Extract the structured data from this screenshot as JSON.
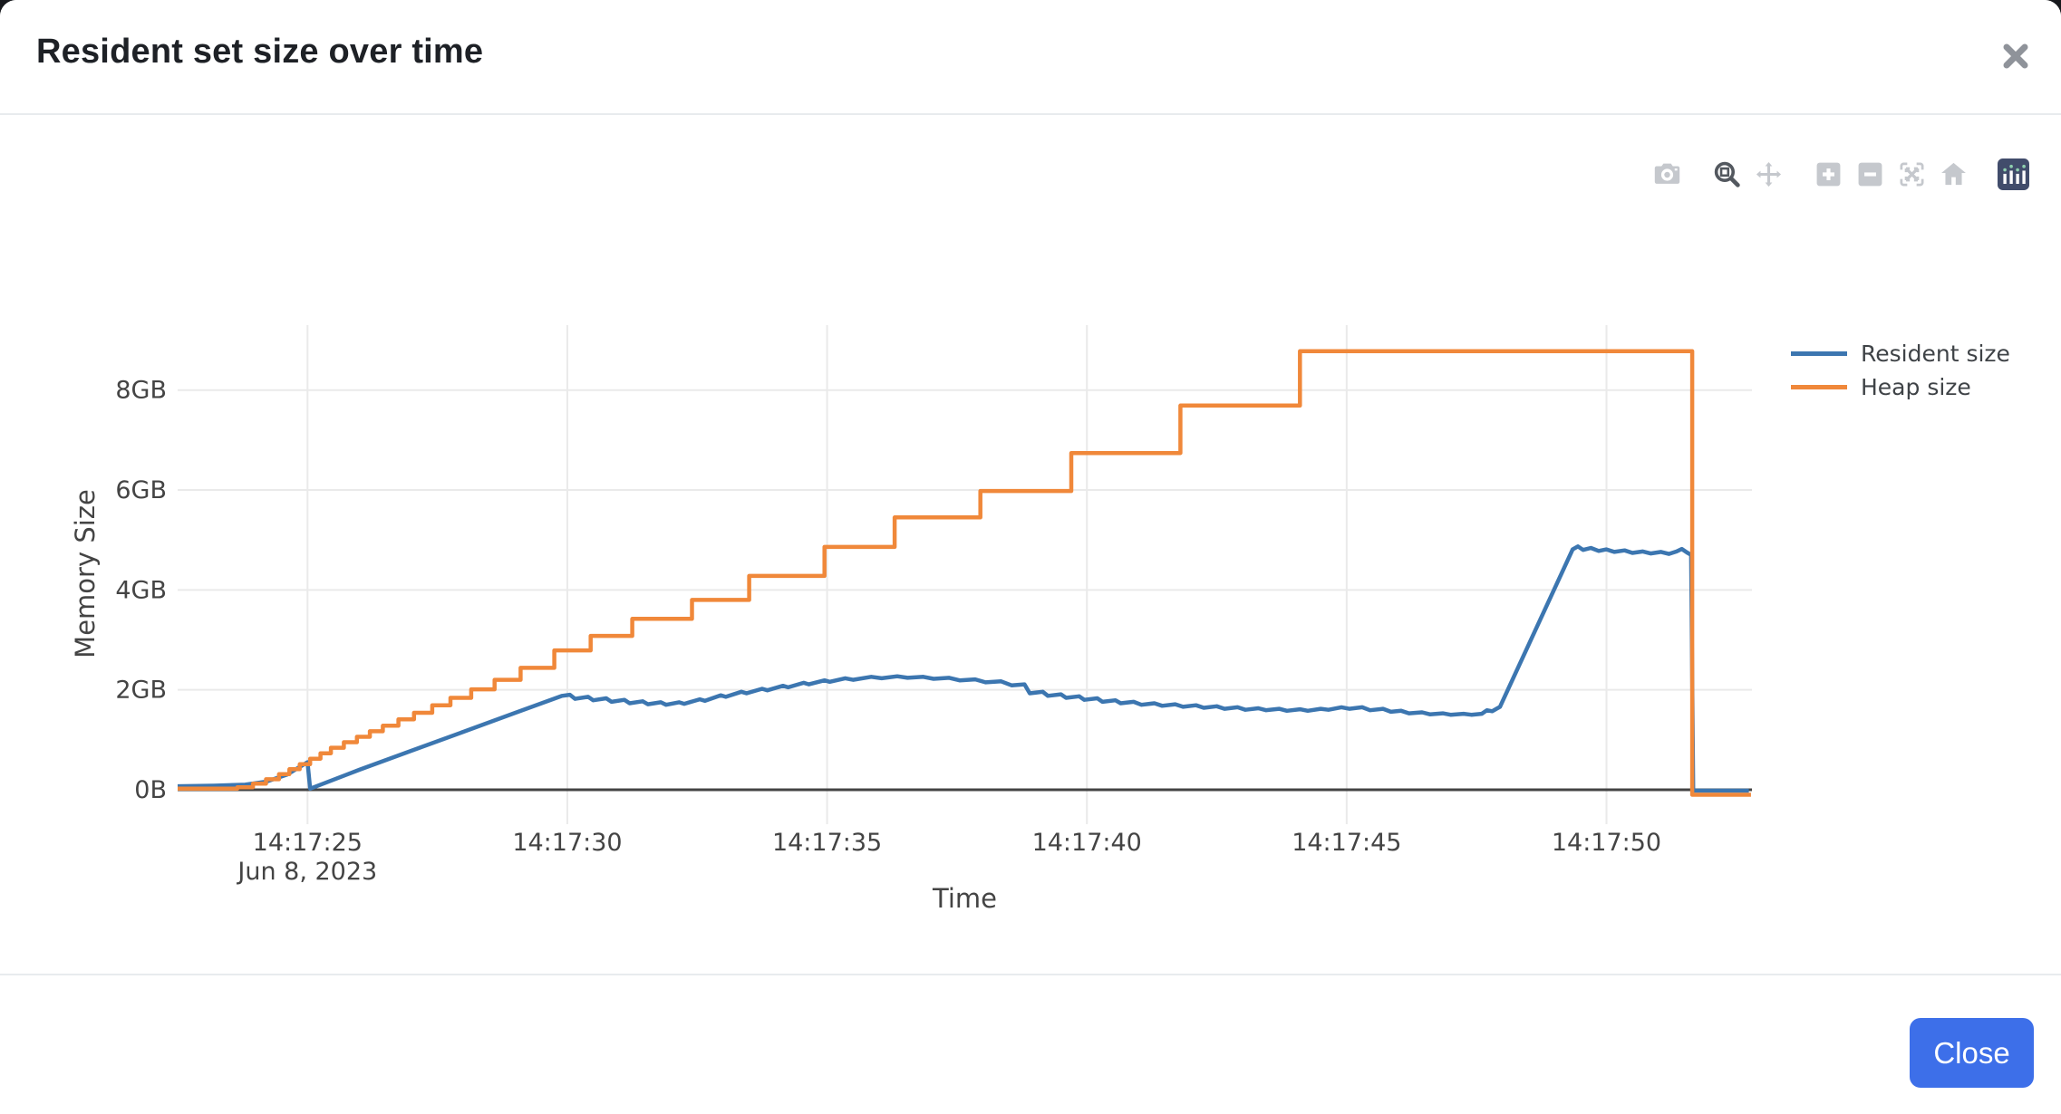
{
  "modal": {
    "title": "Resident set size over time",
    "close_icon": "close-x-icon",
    "footer": {
      "close_label": "Close",
      "button_color": "#3d6fe9"
    }
  },
  "modebar": {
    "buttons": [
      {
        "id": "camera",
        "name": "download-plot-camera",
        "active": false
      },
      {
        "id": "zoom-box",
        "name": "box-zoom",
        "active": true
      },
      {
        "id": "pan",
        "name": "pan",
        "active": false
      },
      {
        "id": "zoom-in",
        "name": "zoom-in",
        "active": false
      },
      {
        "id": "zoom-out",
        "name": "zoom-out",
        "active": false
      },
      {
        "id": "autoscale",
        "name": "autoscale",
        "active": false
      },
      {
        "id": "home",
        "name": "reset-axes-home",
        "active": false
      },
      {
        "id": "plotly-logo",
        "name": "plotly-logo",
        "active": false
      }
    ],
    "inactive_color": "#c5c8cd",
    "active_color": "#53585f",
    "logo_bg": "#414c6b",
    "logo_dot_color": "#8ecfae"
  },
  "chart_data": {
    "type": "line",
    "xlabel": "Time",
    "ylabel": "Memory Size",
    "x_unit": "seconds after 14:17:00 on Jun 8, 2023",
    "x_range": [
      22.5,
      52.8
    ],
    "y_range_gb": [
      -0.69,
      9.3
    ],
    "grid": true,
    "legend_position": "right-top-outside",
    "x_ticks": [
      {
        "t": 25,
        "label": "14:17:25",
        "sublabel": "Jun 8, 2023"
      },
      {
        "t": 30,
        "label": "14:17:30"
      },
      {
        "t": 35,
        "label": "14:17:35"
      },
      {
        "t": 40,
        "label": "14:17:40"
      },
      {
        "t": 45,
        "label": "14:17:45"
      },
      {
        "t": 50,
        "label": "14:17:50"
      }
    ],
    "y_ticks": [
      {
        "v": 0,
        "label": "0B"
      },
      {
        "v": 2,
        "label": "2GB"
      },
      {
        "v": 4,
        "label": "4GB"
      },
      {
        "v": 6,
        "label": "6GB"
      },
      {
        "v": 8,
        "label": "8GB"
      }
    ],
    "grid_color": "#eaeaea",
    "zeroline_color": "#444444",
    "series": [
      {
        "name": "Resident size",
        "color": "#3c76b0",
        "shape": "linear",
        "points": [
          [
            22.5,
            0.07
          ],
          [
            23.2,
            0.08
          ],
          [
            23.8,
            0.1
          ],
          [
            24.2,
            0.16
          ],
          [
            24.6,
            0.3
          ],
          [
            25.0,
            0.55
          ],
          [
            25.05,
            0.02
          ],
          [
            26,
            0.4
          ],
          [
            27,
            0.78
          ],
          [
            28,
            1.16
          ],
          [
            29,
            1.54
          ],
          [
            29.9,
            1.88
          ],
          [
            30.05,
            1.9
          ],
          [
            30.15,
            1.82
          ],
          [
            30.4,
            1.86
          ],
          [
            30.5,
            1.79
          ],
          [
            30.75,
            1.83
          ],
          [
            30.85,
            1.76
          ],
          [
            31.1,
            1.8
          ],
          [
            31.2,
            1.73
          ],
          [
            31.45,
            1.77
          ],
          [
            31.55,
            1.71
          ],
          [
            31.8,
            1.75
          ],
          [
            31.9,
            1.7
          ],
          [
            32.15,
            1.75
          ],
          [
            32.25,
            1.72
          ],
          [
            32.55,
            1.81
          ],
          [
            32.65,
            1.78
          ],
          [
            32.95,
            1.89
          ],
          [
            33.05,
            1.86
          ],
          [
            33.35,
            1.96
          ],
          [
            33.45,
            1.93
          ],
          [
            33.75,
            2.02
          ],
          [
            33.85,
            1.99
          ],
          [
            34.15,
            2.08
          ],
          [
            34.25,
            2.05
          ],
          [
            34.55,
            2.14
          ],
          [
            34.65,
            2.11
          ],
          [
            34.95,
            2.19
          ],
          [
            35.05,
            2.16
          ],
          [
            35.35,
            2.23
          ],
          [
            35.5,
            2.2
          ],
          [
            35.85,
            2.26
          ],
          [
            36.05,
            2.23
          ],
          [
            36.35,
            2.27
          ],
          [
            36.55,
            2.24
          ],
          [
            36.85,
            2.26
          ],
          [
            37.05,
            2.22
          ],
          [
            37.35,
            2.24
          ],
          [
            37.55,
            2.19
          ],
          [
            37.85,
            2.21
          ],
          [
            38.05,
            2.15
          ],
          [
            38.35,
            2.17
          ],
          [
            38.55,
            2.09
          ],
          [
            38.8,
            2.11
          ],
          [
            38.9,
            1.93
          ],
          [
            39.15,
            1.96
          ],
          [
            39.25,
            1.88
          ],
          [
            39.5,
            1.91
          ],
          [
            39.6,
            1.84
          ],
          [
            39.85,
            1.87
          ],
          [
            39.95,
            1.8
          ],
          [
            40.2,
            1.83
          ],
          [
            40.3,
            1.76
          ],
          [
            40.55,
            1.79
          ],
          [
            40.65,
            1.73
          ],
          [
            40.9,
            1.76
          ],
          [
            41.05,
            1.7
          ],
          [
            41.3,
            1.73
          ],
          [
            41.45,
            1.68
          ],
          [
            41.7,
            1.71
          ],
          [
            41.85,
            1.66
          ],
          [
            42.1,
            1.69
          ],
          [
            42.25,
            1.64
          ],
          [
            42.5,
            1.67
          ],
          [
            42.65,
            1.62
          ],
          [
            42.9,
            1.65
          ],
          [
            43.05,
            1.6
          ],
          [
            43.3,
            1.63
          ],
          [
            43.45,
            1.59
          ],
          [
            43.7,
            1.62
          ],
          [
            43.85,
            1.58
          ],
          [
            44.1,
            1.61
          ],
          [
            44.25,
            1.58
          ],
          [
            44.5,
            1.62
          ],
          [
            44.65,
            1.6
          ],
          [
            44.9,
            1.65
          ],
          [
            45.05,
            1.62
          ],
          [
            45.3,
            1.65
          ],
          [
            45.45,
            1.59
          ],
          [
            45.7,
            1.62
          ],
          [
            45.85,
            1.56
          ],
          [
            46.05,
            1.58
          ],
          [
            46.2,
            1.53
          ],
          [
            46.45,
            1.55
          ],
          [
            46.6,
            1.51
          ],
          [
            46.85,
            1.53
          ],
          [
            47.0,
            1.5
          ],
          [
            47.25,
            1.52
          ],
          [
            47.4,
            1.5
          ],
          [
            47.6,
            1.52
          ],
          [
            47.7,
            1.59
          ],
          [
            47.8,
            1.57
          ],
          [
            47.95,
            1.66
          ],
          [
            49.35,
            4.81
          ],
          [
            49.45,
            4.87
          ],
          [
            49.55,
            4.8
          ],
          [
            49.7,
            4.84
          ],
          [
            49.85,
            4.78
          ],
          [
            50.0,
            4.81
          ],
          [
            50.15,
            4.76
          ],
          [
            50.35,
            4.79
          ],
          [
            50.5,
            4.74
          ],
          [
            50.7,
            4.77
          ],
          [
            50.85,
            4.73
          ],
          [
            51.05,
            4.76
          ],
          [
            51.2,
            4.72
          ],
          [
            51.35,
            4.77
          ],
          [
            51.45,
            4.82
          ],
          [
            51.55,
            4.75
          ],
          [
            51.63,
            4.7
          ],
          [
            51.67,
            -0.02
          ],
          [
            52.74,
            -0.02
          ]
        ]
      },
      {
        "name": "Heap size",
        "color": "#f0883a",
        "shape": "hv",
        "points": [
          [
            22.5,
            0.02
          ],
          [
            23.65,
            0.05
          ],
          [
            23.95,
            0.12
          ],
          [
            24.2,
            0.21
          ],
          [
            24.45,
            0.31
          ],
          [
            24.65,
            0.41
          ],
          [
            24.85,
            0.51
          ],
          [
            25.05,
            0.62
          ],
          [
            25.25,
            0.73
          ],
          [
            25.45,
            0.84
          ],
          [
            25.7,
            0.95
          ],
          [
            25.95,
            1.06
          ],
          [
            26.2,
            1.17
          ],
          [
            26.45,
            1.28
          ],
          [
            26.75,
            1.41
          ],
          [
            27.05,
            1.54
          ],
          [
            27.4,
            1.69
          ],
          [
            27.75,
            1.84
          ],
          [
            28.15,
            2.01
          ],
          [
            28.6,
            2.2
          ],
          [
            29.1,
            2.44
          ],
          [
            29.75,
            2.79
          ],
          [
            30.45,
            3.08
          ],
          [
            31.25,
            3.42
          ],
          [
            32.4,
            3.8
          ],
          [
            33.5,
            4.28
          ],
          [
            34.95,
            4.86
          ],
          [
            36.3,
            5.45
          ],
          [
            37.95,
            5.98
          ],
          [
            39.7,
            6.74
          ],
          [
            41.8,
            7.69
          ],
          [
            44.1,
            8.78
          ],
          [
            51.65,
            -0.1
          ],
          [
            52.78,
            -0.1
          ]
        ]
      }
    ]
  }
}
